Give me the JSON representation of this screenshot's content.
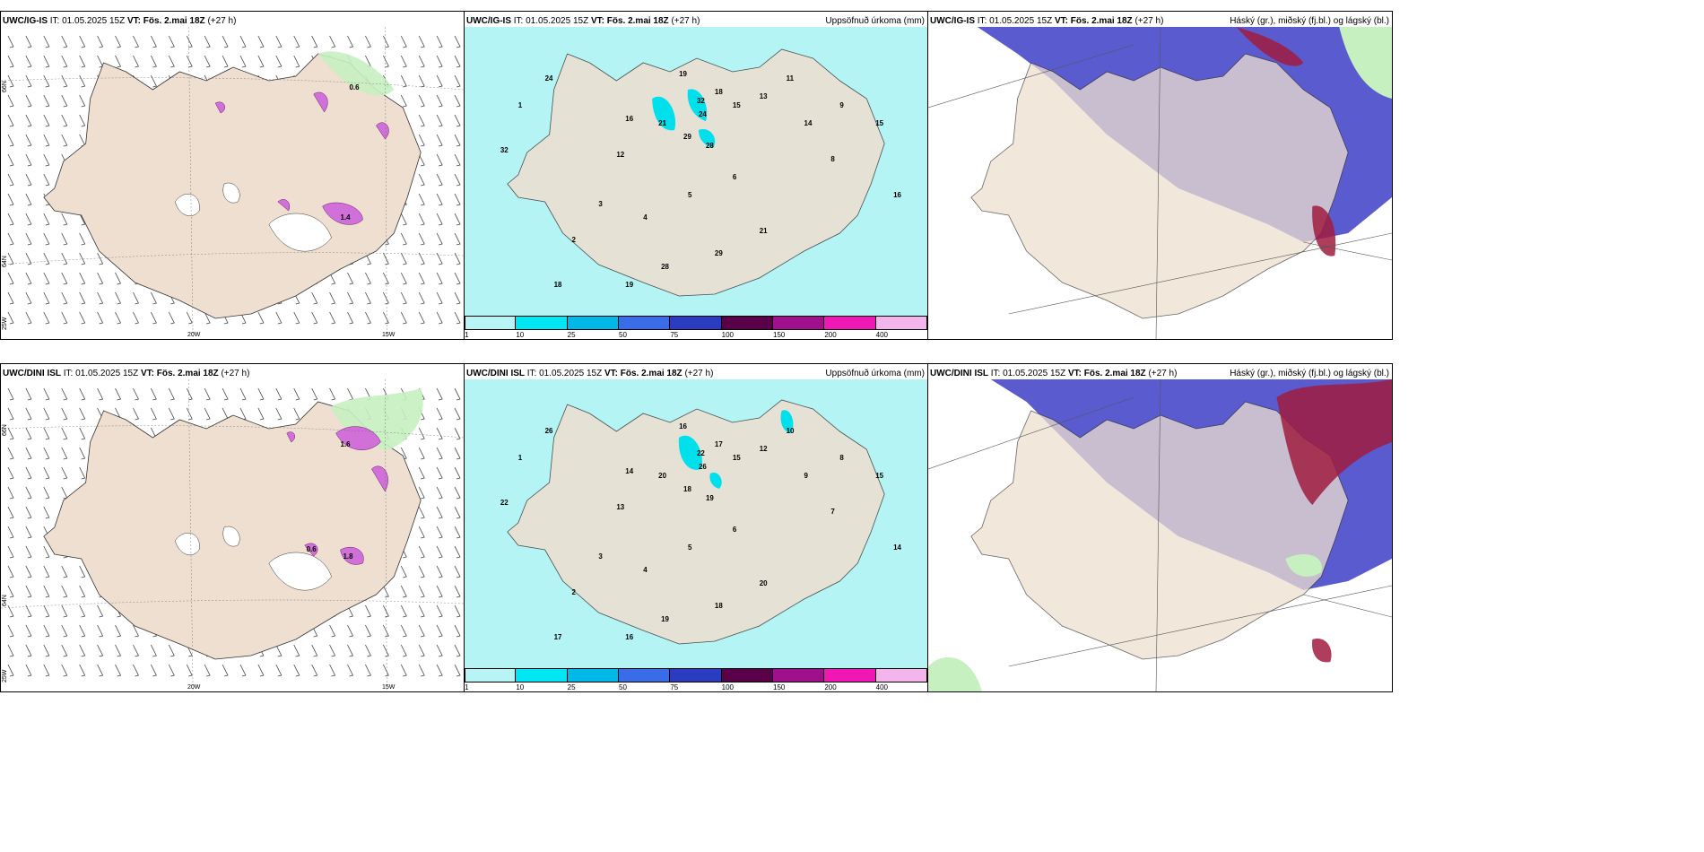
{
  "panels": [
    {
      "model": "UWC/IG-IS",
      "it": "IT: 01.05.2025 15Z",
      "vt_label": "VT:",
      "vt": "Fös. 2.mai 18Z",
      "lead": "(+27 h)",
      "right": ""
    },
    {
      "model": "UWC/IG-IS",
      "it": "IT: 01.05.2025 15Z",
      "vt_label": "VT:",
      "vt": "Fös. 2.mai 18Z",
      "lead": "(+27 h)",
      "right": "Uppsöfnuð úrkoma (mm)"
    },
    {
      "model": "UWC/IG-IS",
      "it": "IT: 01.05.2025 15Z",
      "vt_label": "VT:",
      "vt": "Fös. 2.mai 18Z",
      "lead": "(+27 h)",
      "right": "Háský (gr.), miðský (fj.bl.) og lágský (bl.)"
    },
    {
      "model": "UWC/DINI ISL",
      "it": "IT: 01.05.2025 15Z",
      "vt_label": "VT:",
      "vt": "Fös. 2.mai 18Z",
      "lead": "(+27 h)",
      "right": ""
    },
    {
      "model": "UWC/DINI ISL",
      "it": "IT: 01.05.2025 15Z",
      "vt_label": "VT:",
      "vt": "Fös. 2.mai 18Z",
      "lead": "(+27 h)",
      "right": "Uppsöfnuð úrkoma (mm)"
    },
    {
      "model": "UWC/DINI ISL",
      "it": "IT: 01.05.2025 15Z",
      "vt_label": "VT:",
      "vt": "Fös. 2.mai 18Z",
      "lead": "(+27 h)",
      "right": "Háský (gr.), miðský (fj.bl.) og lágský (bl.)"
    }
  ],
  "graticule": {
    "lat_66": "66N",
    "lat_64": "64N",
    "lat_25": "25W",
    "lon_20": "20W",
    "lon_15": "15W"
  },
  "colorbar": {
    "ticks": [
      "1",
      "10",
      "25",
      "50",
      "75",
      "100",
      "150",
      "200",
      "400"
    ],
    "colors": [
      "#b8f4f6",
      "#00e6f2",
      "#00b8e8",
      "#3a6ce8",
      "#2a3cc0",
      "#5a0048",
      "#a0108c",
      "#f018b4",
      "#f4b4ec"
    ]
  },
  "colors": {
    "land": "#eedfd0",
    "precip": "#b4f4f4",
    "precip_dark": "#00e0ec",
    "cloud_mid": "#5b5bd0",
    "cloud_low": "#3b74e6",
    "snow": "#d070d8",
    "green": "#c6f0c0",
    "red": "#a01c40"
  },
  "amounts_top": [
    "32",
    "24",
    "21",
    "29",
    "28",
    "19",
    "18",
    "15",
    "16",
    "12",
    "13",
    "11",
    "14",
    "9",
    "8",
    "6",
    "5",
    "4",
    "3",
    "2",
    "1"
  ],
  "amounts_bottom": [
    "22",
    "26",
    "20",
    "18",
    "19",
    "16",
    "17",
    "15",
    "14",
    "13",
    "12",
    "10",
    "9",
    "8",
    "7",
    "6",
    "5",
    "4",
    "3",
    "2",
    "1"
  ],
  "snow_labels_top": [
    "0.6",
    "1.4"
  ],
  "snow_labels_bottom": [
    "1.6",
    "0.6",
    "1.8"
  ]
}
